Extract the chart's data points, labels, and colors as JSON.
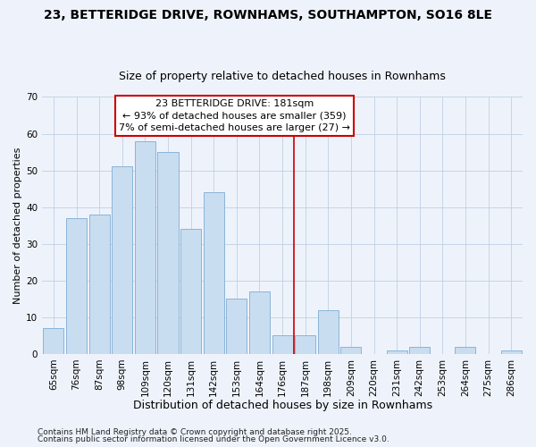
{
  "title": "23, BETTERIDGE DRIVE, ROWNHAMS, SOUTHAMPTON, SO16 8LE",
  "subtitle": "Size of property relative to detached houses in Rownhams",
  "xlabel": "Distribution of detached houses by size in Rownhams",
  "ylabel": "Number of detached properties",
  "bar_labels": [
    "65sqm",
    "76sqm",
    "87sqm",
    "98sqm",
    "109sqm",
    "120sqm",
    "131sqm",
    "142sqm",
    "153sqm",
    "164sqm",
    "176sqm",
    "187sqm",
    "198sqm",
    "209sqm",
    "220sqm",
    "231sqm",
    "242sqm",
    "253sqm",
    "264sqm",
    "275sqm",
    "286sqm"
  ],
  "bar_values": [
    7,
    37,
    38,
    51,
    58,
    55,
    34,
    44,
    15,
    17,
    5,
    5,
    12,
    2,
    0,
    1,
    2,
    0,
    2,
    0,
    1
  ],
  "bar_color": "#c9ddf0",
  "bar_edge_color": "#8ab4d8",
  "ylim": [
    0,
    70
  ],
  "yticks": [
    0,
    10,
    20,
    30,
    40,
    50,
    60,
    70
  ],
  "vline_x": 10.5,
  "vline_color": "#cc0000",
  "annotation_text": "23 BETTERIDGE DRIVE: 181sqm\n← 93% of detached houses are smaller (359)\n7% of semi-detached houses are larger (27) →",
  "annotation_box_facecolor": "#ffffff",
  "annotation_box_edgecolor": "#cc0000",
  "footer1": "Contains HM Land Registry data © Crown copyright and database right 2025.",
  "footer2": "Contains public sector information licensed under the Open Government Licence v3.0.",
  "background_color": "#eef3fb",
  "grid_color": "#c0d0e4",
  "title_fontsize": 10,
  "subtitle_fontsize": 9,
  "xlabel_fontsize": 9,
  "ylabel_fontsize": 8,
  "tick_fontsize": 7.5,
  "annotation_fontsize": 8,
  "footer_fontsize": 6.5
}
